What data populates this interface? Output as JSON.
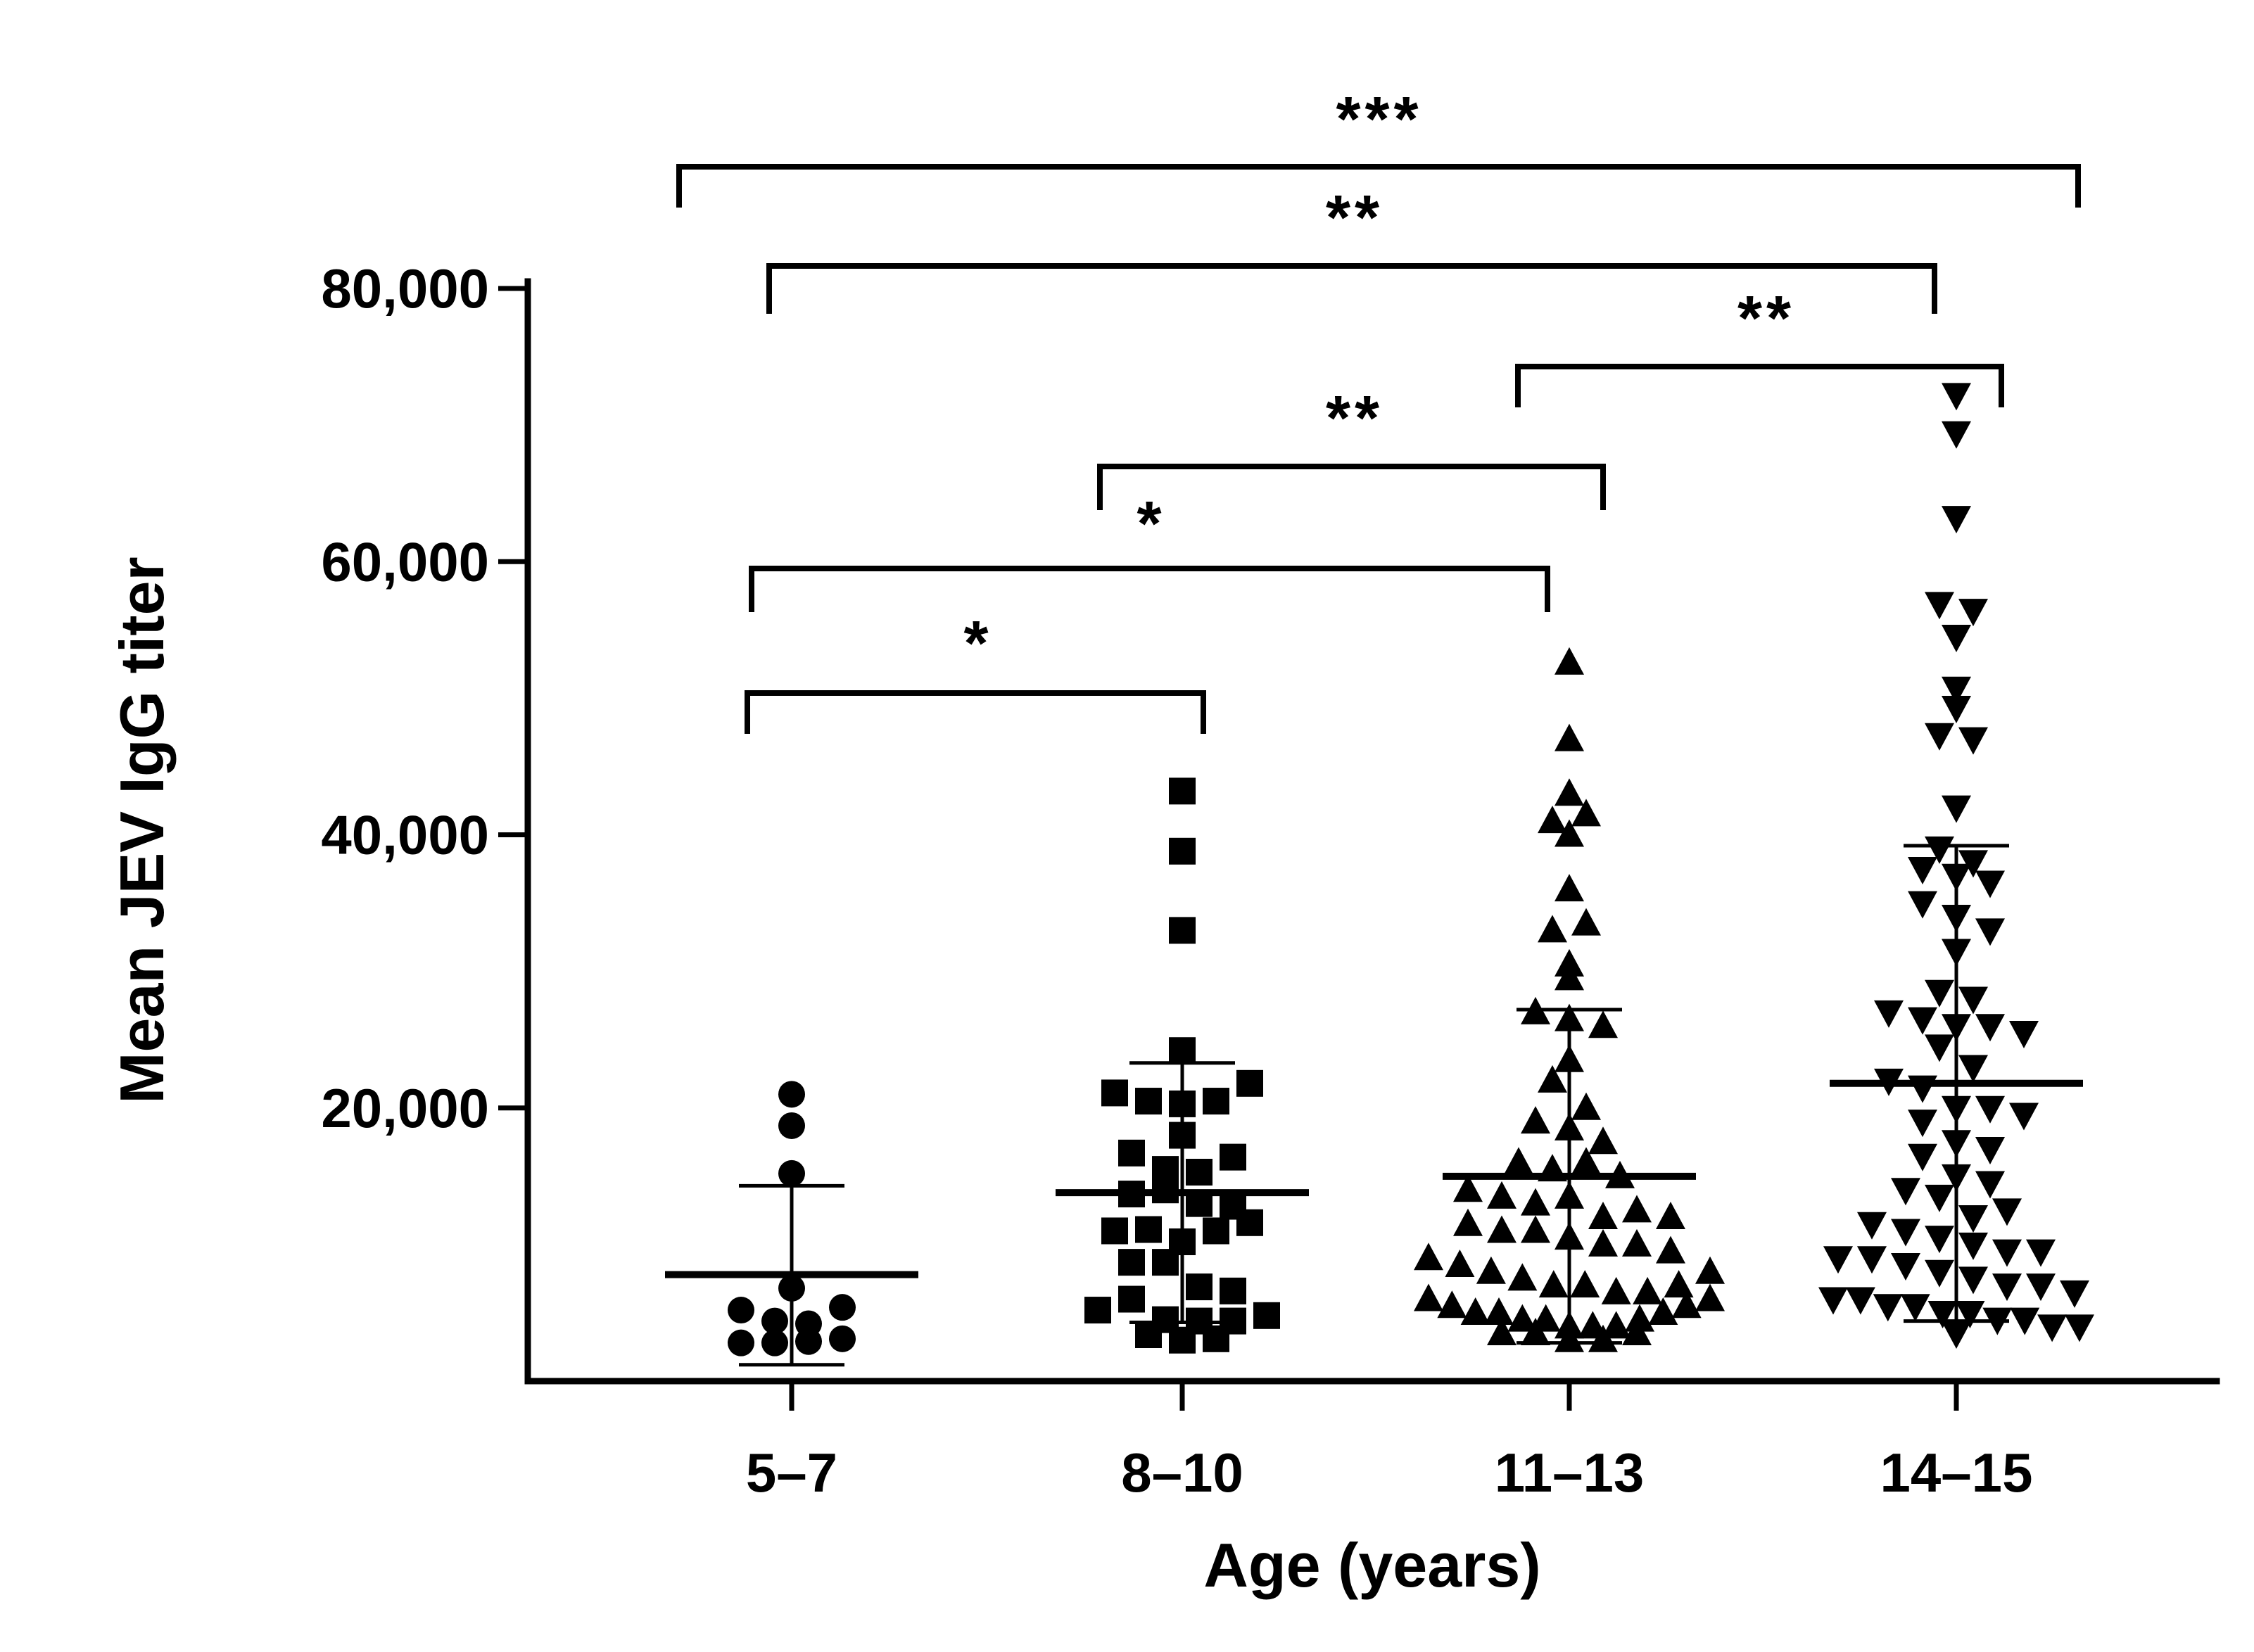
{
  "chart_data": {
    "type": "scatter",
    "subtype": "dot-plot with mean and SD",
    "xlabel": "Age (years)",
    "ylabel": "Mean JEV IgG titer",
    "ylim": [
      0,
      80000
    ],
    "yticks": [
      20000,
      40000,
      60000,
      80000
    ],
    "ytick_labels": [
      "20,000",
      "40,000",
      "60,000",
      "80,000"
    ],
    "categories": [
      "5–7",
      "8–10",
      "11–13",
      "14–15"
    ],
    "series": [
      {
        "name": "5–7",
        "marker": "circle",
        "mean": 7800,
        "sd_upper": 14300,
        "sd_lower": 1200,
        "values": [
          21000,
          18700,
          15200,
          6800,
          5200,
          4400,
          2800,
          2800,
          2900,
          3100,
          4200,
          5400
        ]
      },
      {
        "name": "8–10",
        "marker": "square",
        "mean": 13800,
        "sd_upper": 23300,
        "sd_lower": 4300,
        "values": [
          43200,
          38800,
          33000,
          24200,
          21100,
          20500,
          20300,
          20500,
          21800,
          16700,
          15500,
          18000,
          15300,
          16400,
          13700,
          14000,
          13000,
          12800,
          11000,
          11100,
          10200,
          11000,
          11600,
          8700,
          8700,
          6900,
          6600,
          5200,
          6000,
          4500,
          4400,
          3400,
          3000,
          3100,
          4400,
          4800
        ]
      },
      {
        "name": "11–13",
        "marker": "triangle-up",
        "mean": 15000,
        "sd_upper": 27200,
        "sd_lower": 2800,
        "values": [
          52600,
          47000,
          43000,
          41000,
          40000,
          41500,
          36000,
          33000,
          33500,
          30500,
          29500,
          27000,
          26500,
          26000,
          23500,
          22000,
          20000,
          19000,
          18500,
          17500,
          16000,
          15500,
          16000,
          15000,
          14000,
          13500,
          13000,
          13500,
          12000,
          12500,
          11500,
          12000,
          11000,
          11000,
          10500,
          10000,
          10000,
          9500,
          9000,
          8500,
          8000,
          7500,
          7000,
          7000,
          6500,
          6000,
          5500,
          5000,
          5000,
          4500,
          4500,
          4000,
          4000,
          3500,
          3500,
          3000,
          3000,
          3500,
          4000,
          4500,
          5000,
          5500,
          6000,
          6500,
          7000,
          8000
        ]
      },
      {
        "name": "14–15",
        "marker": "triangle-down",
        "mean": 21800,
        "sd_upper": 39200,
        "sd_lower": 4400,
        "values": [
          72200,
          69400,
          63200,
          56900,
          56400,
          54500,
          50700,
          49300,
          47300,
          47000,
          42000,
          39000,
          38000,
          37500,
          37000,
          36500,
          35000,
          34000,
          33000,
          31500,
          28500,
          28000,
          27000,
          26500,
          26000,
          26000,
          25500,
          24500,
          23000,
          22000,
          21500,
          20000,
          20000,
          19500,
          19000,
          17500,
          17000,
          16500,
          15000,
          14500,
          14000,
          13500,
          12000,
          12500,
          11500,
          11000,
          10500,
          10000,
          9500,
          9500,
          9000,
          9000,
          8500,
          8000,
          7500,
          7000,
          7000,
          6500,
          6000,
          6000,
          5500,
          5500,
          5000,
          5000,
          4500,
          4500,
          4000,
          4000,
          3500
        ]
      }
    ],
    "significance": [
      {
        "from": "5–7",
        "to": "14–15",
        "label": "***"
      },
      {
        "from": "5–7",
        "to": "14–15",
        "label": "**"
      },
      {
        "from": "11–13",
        "to": "14–15",
        "label": "**"
      },
      {
        "from": "8–10",
        "to": "11–13",
        "label": "**"
      },
      {
        "from": "5–7",
        "to": "11–13",
        "label": "*"
      },
      {
        "from": "5–7",
        "to": "8–10",
        "label": "*"
      }
    ]
  }
}
